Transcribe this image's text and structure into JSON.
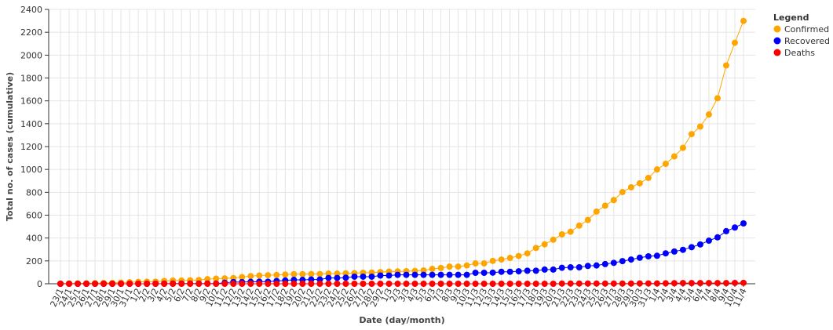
{
  "chart_data": {
    "type": "line",
    "x_label": "Date (day/month)",
    "y_label": "Total no. of cases (cumulative)",
    "legend_title": "Legend",
    "legend_position": "top-right",
    "grid": true,
    "categories": [
      "23/1",
      "24/1",
      "25/1",
      "26/1",
      "27/1",
      "28/1",
      "29/1",
      "30/1",
      "31/1",
      "1/2",
      "2/2",
      "3/2",
      "4/2",
      "5/2",
      "6/2",
      "7/2",
      "8/2",
      "9/2",
      "10/2",
      "11/2",
      "12/2",
      "13/2",
      "14/2",
      "15/2",
      "16/2",
      "17/2",
      "18/2",
      "19/2",
      "20/2",
      "21/2",
      "22/2",
      "23/2",
      "24/2",
      "25/2",
      "26/2",
      "27/2",
      "28/2",
      "29/2",
      "1/3",
      "2/3",
      "3/3",
      "4/3",
      "5/3",
      "6/3",
      "7/3",
      "8/3",
      "9/3",
      "10/3",
      "11/3",
      "12/3",
      "13/3",
      "14/3",
      "15/3",
      "16/3",
      "17/3",
      "18/3",
      "19/3",
      "20/3",
      "21/3",
      "22/3",
      "23/3",
      "24/3",
      "25/3",
      "26/3",
      "27/3",
      "28/3",
      "29/3",
      "30/3",
      "31/3",
      "1/4",
      "2/4",
      "3/4",
      "4/4",
      "5/4",
      "6/4",
      "7/4",
      "8/4",
      "9/4",
      "10/4",
      "11/4"
    ],
    "ylim": [
      0,
      2400
    ],
    "yticks": [
      0,
      200,
      400,
      600,
      800,
      1000,
      1200,
      1400,
      1600,
      1800,
      2000,
      2200,
      2400
    ],
    "series": [
      {
        "name": "Confirmed",
        "color": "#ffa500",
        "values": [
          1,
          3,
          3,
          4,
          5,
          7,
          7,
          10,
          13,
          16,
          18,
          18,
          24,
          28,
          28,
          30,
          33,
          40,
          45,
          47,
          50,
          58,
          67,
          72,
          75,
          77,
          81,
          84,
          84,
          85,
          85,
          89,
          89,
          91,
          93,
          96,
          98,
          102,
          106,
          108,
          110,
          112,
          117,
          130,
          138,
          150,
          150,
          160,
          178,
          178,
          200,
          212,
          226,
          243,
          266,
          313,
          345,
          385,
          432,
          455,
          509,
          558,
          631,
          683,
          732,
          802,
          844,
          879,
          926,
          1000,
          1049,
          1114,
          1189,
          1309,
          1375,
          1481,
          1623,
          1910,
          2108,
          2299
        ]
      },
      {
        "name": "Recovered",
        "color": "#0000ff",
        "values": [
          0,
          0,
          0,
          0,
          0,
          0,
          0,
          0,
          0,
          0,
          0,
          0,
          1,
          2,
          2,
          2,
          2,
          2,
          2,
          9,
          15,
          15,
          17,
          18,
          18,
          24,
          29,
          34,
          34,
          37,
          37,
          51,
          51,
          53,
          62,
          62,
          62,
          72,
          72,
          78,
          78,
          78,
          78,
          78,
          78,
          78,
          78,
          78,
          96,
          96,
          97,
          105,
          105,
          109,
          114,
          114,
          124,
          124,
          140,
          144,
          144,
          156,
          160,
          172,
          183,
          198,
          212,
          228,
          240,
          245,
          266,
          282,
          297,
          320,
          344,
          377,
          406,
          460,
          492,
          528
        ]
      },
      {
        "name": "Deaths",
        "color": "#ff0000",
        "values": [
          0,
          0,
          0,
          0,
          0,
          0,
          0,
          0,
          0,
          0,
          0,
          0,
          0,
          0,
          0,
          0,
          0,
          0,
          0,
          0,
          0,
          0,
          0,
          0,
          0,
          0,
          0,
          0,
          0,
          0,
          0,
          0,
          0,
          0,
          0,
          0,
          0,
          0,
          0,
          0,
          0,
          0,
          0,
          0,
          0,
          0,
          0,
          0,
          0,
          0,
          0,
          0,
          0,
          0,
          0,
          0,
          0,
          0,
          2,
          2,
          2,
          2,
          2,
          2,
          2,
          2,
          2,
          3,
          3,
          3,
          4,
          5,
          6,
          6,
          6,
          6,
          6,
          6,
          7,
          8
        ]
      }
    ]
  }
}
